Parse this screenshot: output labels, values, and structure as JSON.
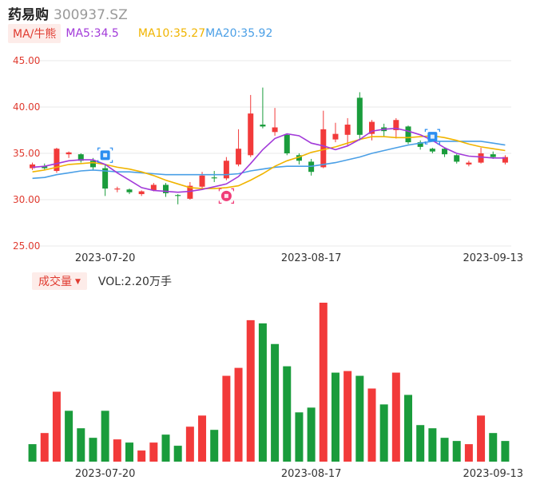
{
  "header": {
    "name": "药易购",
    "code": "300937.SZ"
  },
  "ma_legend": {
    "tag": "MA/牛熊",
    "ma5": "MA5:34.5",
    "ma10": "MA10:35.27",
    "ma20": "MA20:35.92"
  },
  "volume_legend": {
    "tag": "成交量",
    "caret": "▼",
    "value": "VOL:2.20万手"
  },
  "colors": {
    "up": "#f23a3a",
    "down": "#1a9c3c",
    "ma5": "#a23ad9",
    "ma10": "#f0b400",
    "ma20": "#4a9fe6",
    "grid": "#e8e8e8",
    "axis_label": "#e03c31"
  },
  "chart_data": [
    {
      "type": "candlestick",
      "y_ticks": [
        "45.00",
        "40.00",
        "35.00",
        "30.00",
        "25.00"
      ],
      "ylim": [
        25,
        45
      ],
      "x_tick_labels": [
        {
          "index": 6,
          "label": "2023-07-20"
        },
        {
          "index": 23,
          "label": "2023-08-17"
        },
        {
          "index": 38,
          "label": "2023-09-13"
        }
      ],
      "markers": [
        {
          "index": 6,
          "type": "sell",
          "price": 34.8,
          "icon": "blue-s-marker-icon"
        },
        {
          "index": 16,
          "type": "buy",
          "price": 30.4,
          "icon": "pink-b-marker-icon"
        },
        {
          "index": 33,
          "type": "sell",
          "price": 36.8,
          "icon": "blue-s-marker-icon"
        }
      ],
      "candles": [
        {
          "o": 33.4,
          "c": 33.8,
          "h": 34.0,
          "l": 33.2
        },
        {
          "o": 33.6,
          "c": 33.4,
          "h": 33.9,
          "l": 33.2
        },
        {
          "o": 33.1,
          "c": 35.5,
          "h": 35.6,
          "l": 32.9
        },
        {
          "o": 34.9,
          "c": 35.1,
          "h": 35.2,
          "l": 34.5
        },
        {
          "o": 34.9,
          "c": 34.2,
          "h": 35.0,
          "l": 34.0
        },
        {
          "o": 34.2,
          "c": 33.5,
          "h": 34.5,
          "l": 33.2
        },
        {
          "o": 33.4,
          "c": 31.2,
          "h": 33.8,
          "l": 30.4
        },
        {
          "o": 31.1,
          "c": 31.2,
          "h": 31.4,
          "l": 30.8
        },
        {
          "o": 31.1,
          "c": 30.8,
          "h": 31.2,
          "l": 30.6
        },
        {
          "o": 30.6,
          "c": 30.9,
          "h": 31.0,
          "l": 30.4
        },
        {
          "o": 31.0,
          "c": 31.6,
          "h": 31.8,
          "l": 30.9
        },
        {
          "o": 31.6,
          "c": 30.7,
          "h": 31.8,
          "l": 30.3
        },
        {
          "o": 30.5,
          "c": 30.4,
          "h": 30.6,
          "l": 29.5
        },
        {
          "o": 30.1,
          "c": 31.5,
          "h": 31.9,
          "l": 30.0
        },
        {
          "o": 31.4,
          "c": 32.6,
          "h": 33.0,
          "l": 31.2
        },
        {
          "o": 32.4,
          "c": 32.3,
          "h": 33.1,
          "l": 31.9
        },
        {
          "o": 32.3,
          "c": 34.2,
          "h": 34.6,
          "l": 32.1
        },
        {
          "o": 33.8,
          "c": 35.5,
          "h": 37.6,
          "l": 33.6
        },
        {
          "o": 34.8,
          "c": 39.3,
          "h": 41.3,
          "l": 34.6
        },
        {
          "o": 38.1,
          "c": 37.9,
          "h": 42.1,
          "l": 37.7
        },
        {
          "o": 37.3,
          "c": 37.8,
          "h": 39.9,
          "l": 36.9
        },
        {
          "o": 37.0,
          "c": 35.0,
          "h": 37.1,
          "l": 34.8
        },
        {
          "o": 34.8,
          "c": 34.2,
          "h": 35.0,
          "l": 33.8
        },
        {
          "o": 34.1,
          "c": 33.0,
          "h": 34.4,
          "l": 32.6
        },
        {
          "o": 33.5,
          "c": 37.6,
          "h": 39.6,
          "l": 33.4
        },
        {
          "o": 36.5,
          "c": 37.1,
          "h": 38.3,
          "l": 36.2
        },
        {
          "o": 37.0,
          "c": 38.1,
          "h": 38.8,
          "l": 35.8
        },
        {
          "o": 41.0,
          "c": 37.0,
          "h": 41.6,
          "l": 36.4
        },
        {
          "o": 37.1,
          "c": 38.4,
          "h": 38.6,
          "l": 36.4
        },
        {
          "o": 37.8,
          "c": 37.4,
          "h": 38.2,
          "l": 36.8
        },
        {
          "o": 37.5,
          "c": 38.6,
          "h": 38.8,
          "l": 36.6
        },
        {
          "o": 37.9,
          "c": 36.2,
          "h": 38.0,
          "l": 36.0
        },
        {
          "o": 36.2,
          "c": 35.7,
          "h": 36.4,
          "l": 35.4
        },
        {
          "o": 35.5,
          "c": 35.2,
          "h": 35.6,
          "l": 35.0
        },
        {
          "o": 35.5,
          "c": 34.9,
          "h": 35.6,
          "l": 34.6
        },
        {
          "o": 34.8,
          "c": 34.1,
          "h": 34.9,
          "l": 33.9
        },
        {
          "o": 33.8,
          "c": 34.0,
          "h": 34.2,
          "l": 33.6
        },
        {
          "o": 34.0,
          "c": 35.0,
          "h": 35.6,
          "l": 33.9
        },
        {
          "o": 34.9,
          "c": 34.6,
          "h": 35.2,
          "l": 34.4
        },
        {
          "o": 34.0,
          "c": 34.6,
          "h": 34.8,
          "l": 33.8
        }
      ],
      "ma5": [
        33.5,
        33.6,
        33.9,
        34.2,
        34.3,
        34.3,
        33.8,
        32.9,
        32.1,
        31.3,
        31.0,
        30.9,
        30.8,
        30.9,
        31.1,
        31.4,
        31.7,
        32.5,
        33.9,
        35.4,
        36.6,
        37.1,
        36.9,
        36.1,
        35.8,
        35.4,
        35.8,
        36.5,
        37.4,
        37.6,
        37.7,
        37.4,
        37.0,
        36.4,
        35.6,
        35.0,
        34.7,
        34.6,
        34.5,
        34.5
      ],
      "ma10": [
        33.0,
        33.2,
        33.5,
        33.8,
        33.9,
        34.0,
        33.8,
        33.5,
        33.3,
        33.0,
        32.6,
        32.1,
        31.7,
        31.3,
        31.2,
        31.2,
        31.3,
        31.5,
        32.1,
        32.8,
        33.6,
        34.2,
        34.6,
        35.1,
        35.4,
        35.7,
        36.1,
        36.5,
        36.8,
        36.8,
        36.7,
        36.7,
        36.8,
        36.9,
        36.7,
        36.4,
        36.0,
        35.7,
        35.5,
        35.3
      ],
      "ma20": [
        32.3,
        32.4,
        32.7,
        32.9,
        33.1,
        33.2,
        33.1,
        33.0,
        33.0,
        32.9,
        32.8,
        32.7,
        32.7,
        32.7,
        32.7,
        32.7,
        32.7,
        32.8,
        33.1,
        33.3,
        33.5,
        33.6,
        33.6,
        33.6,
        33.8,
        34.0,
        34.3,
        34.6,
        35.0,
        35.3,
        35.6,
        35.9,
        36.1,
        36.3,
        36.3,
        36.3,
        36.3,
        36.3,
        36.1,
        35.9
      ]
    },
    {
      "type": "bar",
      "title": "成交量",
      "x_tick_labels": [
        {
          "index": 6,
          "label": "2023-07-20"
        },
        {
          "index": 23,
          "label": "2023-08-17"
        },
        {
          "index": 38,
          "label": "2023-09-13"
        }
      ],
      "ylim": [
        0,
        100
      ],
      "values": [
        11,
        18,
        44,
        32,
        21,
        15,
        32,
        14,
        12,
        7,
        12,
        17,
        10,
        22,
        29,
        20,
        54,
        59,
        89,
        87,
        74,
        60,
        31,
        34,
        100,
        56,
        57,
        54,
        46,
        36,
        56,
        42,
        23,
        21,
        15,
        13,
        11,
        29,
        18,
        13
      ],
      "directions": [
        "down",
        "up",
        "up",
        "down",
        "down",
        "down",
        "down",
        "up",
        "down",
        "up",
        "up",
        "down",
        "down",
        "up",
        "up",
        "down",
        "up",
        "up",
        "up",
        "down",
        "down",
        "down",
        "down",
        "down",
        "up",
        "down",
        "up",
        "down",
        "up",
        "down",
        "up",
        "down",
        "down",
        "down",
        "down",
        "down",
        "up",
        "up",
        "down",
        "down"
      ]
    }
  ]
}
